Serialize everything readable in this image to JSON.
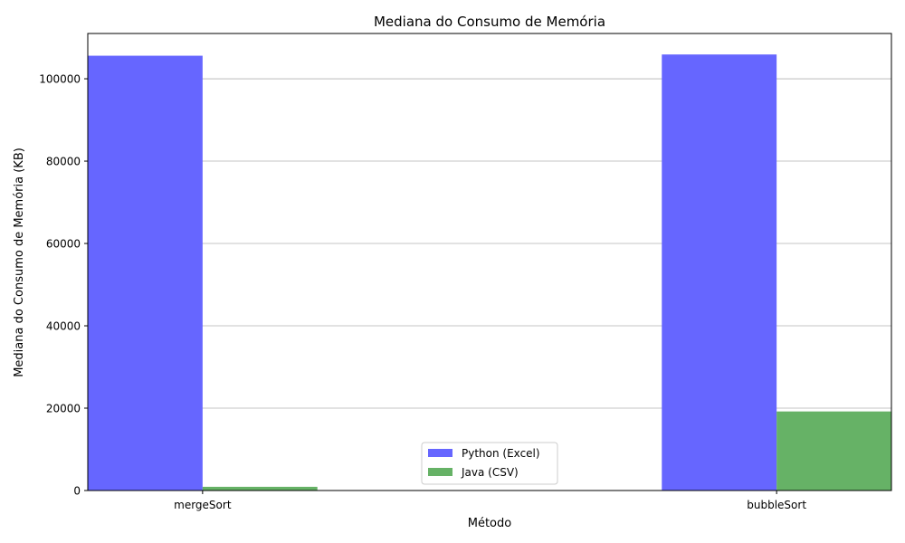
{
  "chart_data": {
    "type": "bar",
    "title": "Mediana do Consumo de Memória",
    "xlabel": "Método",
    "ylabel": "Mediana do Consumo de Memória (KB)",
    "categories": [
      "mergeSort",
      "bubbleSort"
    ],
    "series": [
      {
        "name": "Python (Excel)",
        "values": [
          105600,
          105900
        ],
        "color": "#6666ff"
      },
      {
        "name": "Java (CSV)",
        "values": [
          900,
          19200
        ],
        "color": "#66b266"
      }
    ],
    "ylim": [
      0,
      111000
    ],
    "yticks": [
      0,
      20000,
      40000,
      60000,
      80000,
      100000
    ],
    "ytick_labels": [
      "0",
      "20000",
      "40000",
      "60000",
      "80000",
      "100000"
    ],
    "grid": "horizontal",
    "legend_position": "bottom-center"
  }
}
